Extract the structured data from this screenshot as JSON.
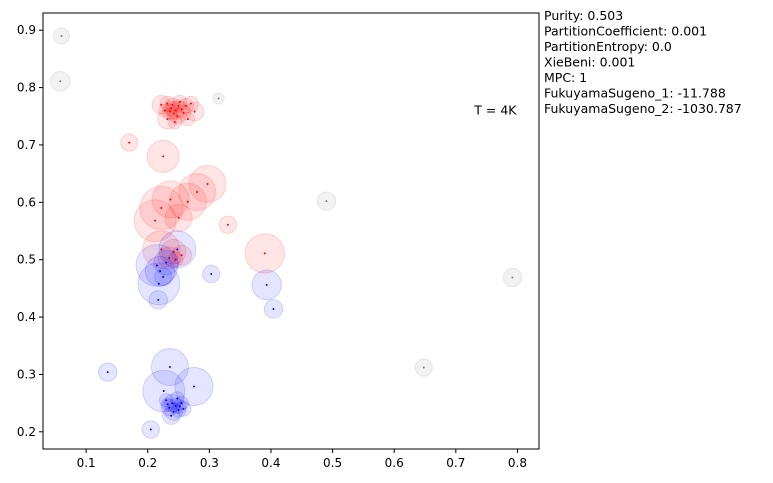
{
  "chart_data": {
    "type": "scatter",
    "title": "",
    "xlabel": "",
    "ylabel": "",
    "xlim": [
      0.03,
      0.835
    ],
    "ylim": [
      0.17,
      0.93
    ],
    "xticks": [
      "0.1",
      "0.2",
      "0.3",
      "0.4",
      "0.5",
      "0.6",
      "0.7",
      "0.8"
    ],
    "xtick_values": [
      0.1,
      0.2,
      0.3,
      0.4,
      0.5,
      0.6,
      0.7,
      0.8
    ],
    "yticks": [
      "0.2",
      "0.3",
      "0.4",
      "0.5",
      "0.6",
      "0.7",
      "0.8",
      "0.9"
    ],
    "ytick_values": [
      0.2,
      0.3,
      0.4,
      0.5,
      0.6,
      0.7,
      0.8,
      0.9
    ],
    "grid": false,
    "annotation": "T = 4K",
    "annotation_pos": [
      0.73,
      0.76
    ],
    "metrics": [
      "Purity: 0.503",
      "PartitionCoefficient: 0.001",
      "PartitionEntropy: 0.0",
      "XieBeni: 0.001",
      "MPC: 1",
      "FukuyamaSugeno_1: -11.788",
      "FukuyamaSugeno_2: -1030.787"
    ],
    "series": [
      {
        "color": "#ff0000",
        "points": [
          [
            0.222,
            0.77,
            0.015
          ],
          [
            0.232,
            0.772,
            0.012
          ],
          [
            0.238,
            0.764,
            0.012
          ],
          [
            0.245,
            0.76,
            0.014
          ],
          [
            0.25,
            0.768,
            0.01
          ],
          [
            0.255,
            0.762,
            0.013
          ],
          [
            0.242,
            0.755,
            0.011
          ],
          [
            0.236,
            0.758,
            0.012
          ],
          [
            0.248,
            0.75,
            0.013
          ],
          [
            0.258,
            0.756,
            0.012
          ],
          [
            0.262,
            0.768,
            0.012
          ],
          [
            0.27,
            0.772,
            0.012
          ],
          [
            0.276,
            0.758,
            0.015
          ],
          [
            0.252,
            0.775,
            0.011
          ],
          [
            0.24,
            0.77,
            0.011
          ],
          [
            0.232,
            0.745,
            0.016
          ],
          [
            0.244,
            0.74,
            0.011
          ],
          [
            0.228,
            0.76,
            0.01
          ],
          [
            0.265,
            0.745,
            0.011
          ],
          [
            0.17,
            0.704,
            0.014
          ],
          [
            0.225,
            0.68,
            0.026
          ],
          [
            0.297,
            0.632,
            0.03
          ],
          [
            0.28,
            0.618,
            0.03
          ],
          [
            0.265,
            0.601,
            0.03
          ],
          [
            0.237,
            0.605,
            0.03
          ],
          [
            0.222,
            0.59,
            0.035
          ],
          [
            0.212,
            0.568,
            0.034
          ],
          [
            0.25,
            0.573,
            0.022
          ],
          [
            0.33,
            0.561,
            0.014
          ],
          [
            0.39,
            0.511,
            0.032
          ],
          [
            0.222,
            0.518,
            0.03
          ],
          [
            0.242,
            0.514,
            0.02
          ],
          [
            0.255,
            0.508,
            0.016
          ],
          [
            0.235,
            0.503,
            0.018
          ],
          [
            0.245,
            0.5,
            0.012
          ]
        ]
      },
      {
        "color": "#0000ff",
        "points": [
          [
            0.248,
            0.518,
            0.03
          ],
          [
            0.215,
            0.49,
            0.034
          ],
          [
            0.23,
            0.495,
            0.02
          ],
          [
            0.22,
            0.48,
            0.024
          ],
          [
            0.225,
            0.47,
            0.014
          ],
          [
            0.218,
            0.458,
            0.034
          ],
          [
            0.217,
            0.43,
            0.015
          ],
          [
            0.303,
            0.475,
            0.014
          ],
          [
            0.393,
            0.456,
            0.024
          ],
          [
            0.404,
            0.414,
            0.015
          ],
          [
            0.135,
            0.304,
            0.015
          ],
          [
            0.236,
            0.313,
            0.03
          ],
          [
            0.226,
            0.271,
            0.034
          ],
          [
            0.275,
            0.279,
            0.031
          ],
          [
            0.205,
            0.204,
            0.014
          ],
          [
            0.24,
            0.25,
            0.014
          ],
          [
            0.245,
            0.245,
            0.012
          ],
          [
            0.235,
            0.242,
            0.013
          ],
          [
            0.25,
            0.238,
            0.012
          ],
          [
            0.242,
            0.235,
            0.014
          ],
          [
            0.255,
            0.25,
            0.011
          ],
          [
            0.23,
            0.255,
            0.011
          ],
          [
            0.248,
            0.258,
            0.011
          ],
          [
            0.238,
            0.228,
            0.014
          ],
          [
            0.252,
            0.244,
            0.011
          ],
          [
            0.232,
            0.248,
            0.01
          ],
          [
            0.258,
            0.24,
            0.012
          ]
        ]
      },
      {
        "color": "#808080",
        "points": [
          [
            0.06,
            0.89,
            0.013
          ],
          [
            0.058,
            0.811,
            0.016
          ],
          [
            0.315,
            0.781,
            0.009
          ],
          [
            0.49,
            0.602,
            0.015
          ],
          [
            0.792,
            0.469,
            0.015
          ],
          [
            0.648,
            0.312,
            0.014
          ]
        ]
      }
    ]
  }
}
